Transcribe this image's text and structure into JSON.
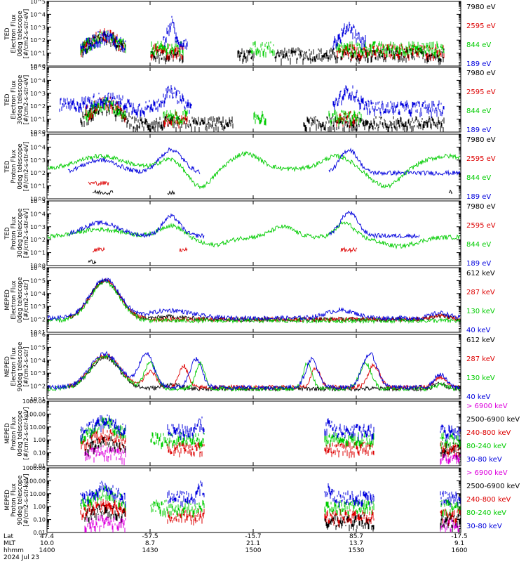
{
  "colors": {
    "black": "#000000",
    "red": "#dd0000",
    "green": "#00cc00",
    "blue": "#0000dd",
    "magenta": "#dd00dd"
  },
  "chart_data": [
    {
      "type": "scatter",
      "ylabel": [
        "TED",
        "Electron Flux",
        "0deg telescope",
        "[#/cm2-s-str-eV]"
      ],
      "yscale": "log",
      "ylim": [
        1,
        100000
      ],
      "yticks": [
        "10^0",
        "10^1",
        "10^2",
        "10^3",
        "10^4",
        "10^5"
      ],
      "legend": [
        {
          "label": "7980 eV",
          "color": "black"
        },
        {
          "label": "2595 eV",
          "color": "red"
        },
        {
          "label": "844 eV",
          "color": "green"
        },
        {
          "label": "189 eV",
          "color": "blue"
        }
      ]
    },
    {
      "type": "scatter",
      "ylabel": [
        "TED",
        "Electron Flux",
        "30deg telescope",
        "[#/cm2-s-str-eV]"
      ],
      "yscale": "log",
      "ylim": [
        1,
        100000
      ],
      "yticks": [
        "10^0",
        "10^1",
        "10^2",
        "10^3",
        "10^4",
        "10^5"
      ],
      "legend": [
        {
          "label": "7980 eV",
          "color": "black"
        },
        {
          "label": "2595 eV",
          "color": "red"
        },
        {
          "label": "844 eV",
          "color": "green"
        },
        {
          "label": "189 eV",
          "color": "blue"
        }
      ]
    },
    {
      "type": "scatter",
      "ylabel": [
        "TED",
        "Proton Flux",
        "0deg telescope",
        "[#/cm2-s-str-eV]"
      ],
      "yscale": "log",
      "ylim": [
        1,
        100000
      ],
      "yticks": [
        "10^0",
        "10^1",
        "10^2",
        "10^3",
        "10^4",
        "10^5"
      ],
      "legend": [
        {
          "label": "7980 eV",
          "color": "black"
        },
        {
          "label": "2595 eV",
          "color": "red"
        },
        {
          "label": "844 eV",
          "color": "green"
        },
        {
          "label": "189 eV",
          "color": "blue"
        }
      ]
    },
    {
      "type": "scatter",
      "ylabel": [
        "TED",
        "Proton Flux",
        "30deg telescope",
        "[#/cm2-s-str-eV]"
      ],
      "yscale": "log",
      "ylim": [
        1,
        100000
      ],
      "yticks": [
        "10^0",
        "10^1",
        "10^2",
        "10^3",
        "10^4",
        "10^5"
      ],
      "legend": [
        {
          "label": "7980 eV",
          "color": "black"
        },
        {
          "label": "2595 eV",
          "color": "red"
        },
        {
          "label": "844 eV",
          "color": "green"
        },
        {
          "label": "189 eV",
          "color": "blue"
        }
      ]
    },
    {
      "type": "line",
      "ylabel": [
        "MEPED",
        "Electron Flux",
        "0deg telescope",
        "[#/cm2-s-str]"
      ],
      "yscale": "log",
      "ylim": [
        10,
        1000000
      ],
      "yticks": [
        "10^1",
        "10^2",
        "10^3",
        "10^4",
        "10^5",
        "10^6"
      ],
      "legend": [
        {
          "label": "612 keV",
          "color": "black"
        },
        {
          "label": "287 keV",
          "color": "red"
        },
        {
          "label": "130 keV",
          "color": "green"
        },
        {
          "label": "40 keV",
          "color": "blue"
        }
      ]
    },
    {
      "type": "line",
      "ylabel": [
        "MEPED",
        "Electron Flux",
        "90deg telescope",
        "[#/cm2-s-str]"
      ],
      "yscale": "log",
      "ylim": [
        10,
        1000000
      ],
      "yticks": [
        "10^1",
        "10^2",
        "10^3",
        "10^4",
        "10^5",
        "10^6"
      ],
      "legend": [
        {
          "label": "612 keV",
          "color": "black"
        },
        {
          "label": "287 keV",
          "color": "red"
        },
        {
          "label": "130 keV",
          "color": "green"
        },
        {
          "label": "40 keV",
          "color": "blue"
        }
      ]
    },
    {
      "type": "scatter",
      "ylabel": [
        "MEPED",
        "Proton Flux",
        "0deg telescope",
        "[#/cm2-s-str-keV]"
      ],
      "yscale": "log",
      "ylim": [
        0.01,
        1000
      ],
      "yticks": [
        "0.01",
        "0.10",
        "1.00",
        "10.00",
        "100.00",
        "1000.00"
      ],
      "legend": [
        {
          "label": "> 6900 keV",
          "color": "magenta"
        },
        {
          "label": "2500-6900 keV",
          "color": "black"
        },
        {
          "label": "240-800 keV",
          "color": "red"
        },
        {
          "label": "80-240 keV",
          "color": "green"
        },
        {
          "label": "30-80 keV",
          "color": "blue"
        }
      ]
    },
    {
      "type": "scatter",
      "ylabel": [
        "MEPED",
        "Proton Flux",
        "90deg telescope",
        "[#/cm2-s-str-keV]"
      ],
      "yscale": "log",
      "ylim": [
        0.01,
        1000
      ],
      "yticks": [
        "0.01",
        "0.10",
        "1.00",
        "10.00",
        "100.00",
        "1000.00"
      ],
      "legend": [
        {
          "label": "> 6900 keV",
          "color": "magenta"
        },
        {
          "label": "2500-6900 keV",
          "color": "black"
        },
        {
          "label": "240-800 keV",
          "color": "red"
        },
        {
          "label": "80-240 keV",
          "color": "green"
        },
        {
          "label": "30-80 keV",
          "color": "blue"
        }
      ]
    }
  ],
  "x_axis": {
    "row_labels": [
      "Lat",
      "MLT",
      "hhmm"
    ],
    "date": "2024 Jul 23",
    "ticks": [
      {
        "lat": "47.4",
        "mlt": "10.0",
        "hhmm": "1400"
      },
      {
        "lat": "-57.5",
        "mlt": "8.7",
        "hhmm": "1430"
      },
      {
        "lat": "-15.7",
        "mlt": "21.1",
        "hhmm": "1500"
      },
      {
        "lat": "85.7",
        "mlt": "13.7",
        "hhmm": "1530"
      },
      {
        "lat": "-17.5",
        "mlt": "9.1",
        "hhmm": "1600"
      }
    ]
  }
}
